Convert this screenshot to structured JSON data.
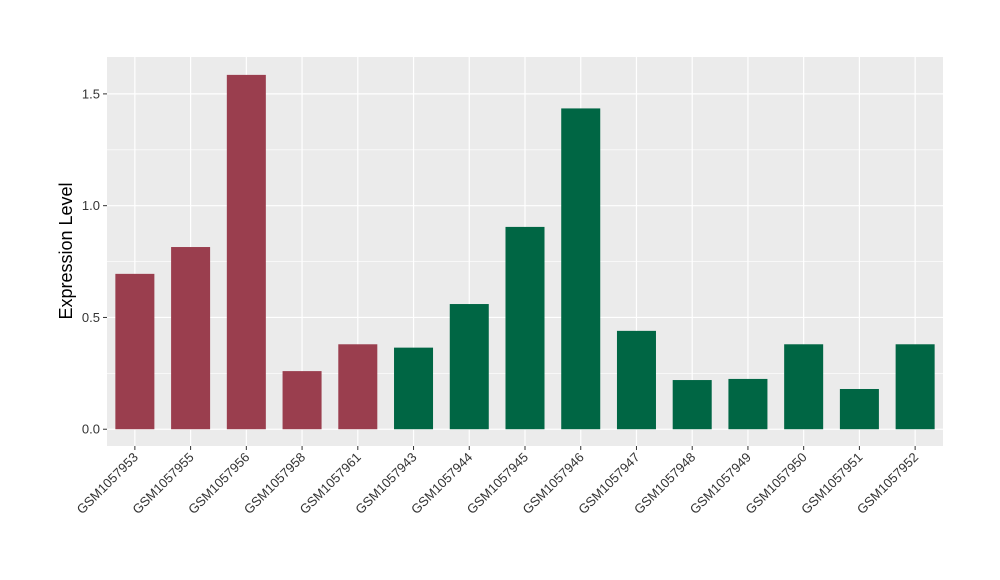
{
  "chart_data": {
    "type": "bar",
    "title": "",
    "xlabel": "",
    "ylabel": "Expression Level",
    "ylim": [
      -0.075,
      1.665
    ],
    "y_ticks": [
      0.0,
      0.5,
      1.0,
      1.5
    ],
    "y_tick_labels": [
      "0.0",
      "0.5",
      "1.0",
      "1.5"
    ],
    "grid": true,
    "legend": "none",
    "panel_color": "#EBEBEB",
    "categories": [
      "GSM1057953",
      "GSM1057955",
      "GSM1057956",
      "GSM1057958",
      "GSM1057961",
      "GSM1057943",
      "GSM1057944",
      "GSM1057945",
      "GSM1057946",
      "GSM1057947",
      "GSM1057948",
      "GSM1057949",
      "GSM1057950",
      "GSM1057951",
      "GSM1057952"
    ],
    "values": [
      0.695,
      0.815,
      1.585,
      0.26,
      0.38,
      0.365,
      0.56,
      0.905,
      1.435,
      0.44,
      0.22,
      0.225,
      0.38,
      0.18,
      0.38
    ],
    "bar_colors": [
      "#9A3E4E",
      "#9A3E4E",
      "#9A3E4E",
      "#9A3E4E",
      "#9A3E4E",
      "#006644",
      "#006644",
      "#006644",
      "#006644",
      "#006644",
      "#006644",
      "#006644",
      "#006644",
      "#006644",
      "#006644"
    ]
  }
}
